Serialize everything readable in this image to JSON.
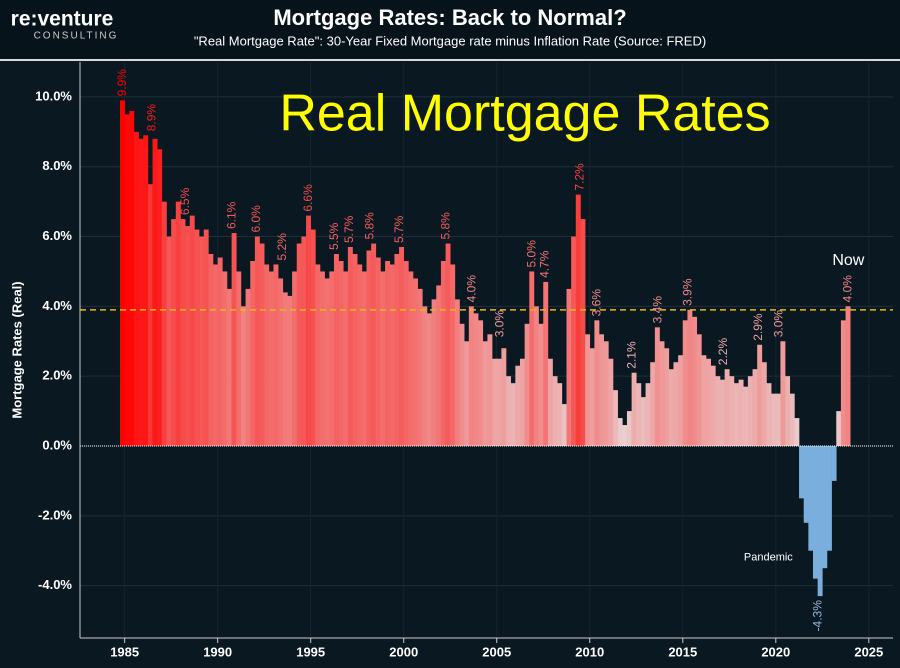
{
  "brand": {
    "name": "re:venture",
    "tagline": "CONSULTING"
  },
  "chart_data": {
    "type": "bar",
    "title": "Mortgage Rates: Back to Normal?",
    "subtitle": "\"Real Mortgage Rate\": 30-Year Fixed Mortgage rate minus Inflation Rate (Source: FRED)",
    "overlay_title": "Real Mortgage Rates",
    "y_label": "Mortgage Rates (Real)",
    "x": [
      1984.75,
      1985,
      1985.25,
      1985.5,
      1985.75,
      1986,
      1986.25,
      1986.5,
      1986.75,
      1987,
      1987.25,
      1987.5,
      1987.75,
      1988,
      1988.25,
      1988.5,
      1988.75,
      1989,
      1989.25,
      1989.5,
      1989.75,
      1990,
      1990.25,
      1990.5,
      1990.75,
      1991,
      1991.25,
      1991.5,
      1991.75,
      1992,
      1992.25,
      1992.5,
      1992.75,
      1993,
      1993.25,
      1993.5,
      1993.75,
      1994,
      1994.25,
      1994.5,
      1994.75,
      1995,
      1995.25,
      1995.5,
      1995.75,
      1996,
      1996.25,
      1996.5,
      1996.75,
      1997,
      1997.25,
      1997.5,
      1997.75,
      1998,
      1998.25,
      1998.5,
      1998.75,
      1999,
      1999.25,
      1999.5,
      1999.75,
      2000,
      2000.25,
      2000.5,
      2000.75,
      2001,
      2001.25,
      2001.5,
      2001.75,
      2002,
      2002.25,
      2002.5,
      2002.75,
      2003,
      2003.25,
      2003.5,
      2003.75,
      2004,
      2004.25,
      2004.5,
      2004.75,
      2005,
      2005.25,
      2005.5,
      2005.75,
      2006,
      2006.25,
      2006.5,
      2006.75,
      2007,
      2007.25,
      2007.5,
      2007.75,
      2008,
      2008.25,
      2008.5,
      2008.75,
      2009,
      2009.25,
      2009.5,
      2009.75,
      2010,
      2010.25,
      2010.5,
      2010.75,
      2011,
      2011.25,
      2011.5,
      2011.75,
      2012,
      2012.25,
      2012.5,
      2012.75,
      2013,
      2013.25,
      2013.5,
      2013.75,
      2014,
      2014.25,
      2014.5,
      2014.75,
      2015,
      2015.25,
      2015.5,
      2015.75,
      2016,
      2016.25,
      2016.5,
      2016.75,
      2017,
      2017.25,
      2017.5,
      2017.75,
      2018,
      2018.25,
      2018.5,
      2018.75,
      2019,
      2019.25,
      2019.5,
      2019.75,
      2020,
      2020.25,
      2020.5,
      2020.75,
      2021,
      2021.25,
      2021.5,
      2021.75,
      2022,
      2022.25,
      2022.5,
      2022.75,
      2023,
      2023.25,
      2023.5,
      2023.75
    ],
    "values": [
      9.9,
      9.5,
      9.6,
      9.0,
      8.8,
      8.9,
      7.5,
      8.8,
      8.5,
      7.0,
      6.0,
      6.5,
      7.0,
      6.5,
      6.3,
      6.6,
      6.2,
      6.0,
      6.2,
      5.5,
      5.2,
      5.4,
      5.0,
      4.5,
      6.1,
      5.0,
      4.0,
      4.5,
      5.3,
      6.0,
      5.8,
      5.2,
      5.0,
      5.2,
      4.8,
      4.4,
      4.3,
      5.0,
      5.8,
      6.0,
      6.6,
      6.2,
      5.2,
      5.0,
      4.8,
      5.0,
      5.5,
      5.3,
      5.0,
      5.7,
      5.5,
      5.2,
      5.0,
      5.6,
      5.8,
      5.4,
      5.0,
      5.3,
      5.2,
      5.5,
      5.7,
      5.3,
      5.0,
      4.8,
      4.5,
      4.0,
      3.8,
      4.2,
      4.6,
      5.3,
      5.8,
      5.2,
      4.2,
      3.5,
      3.0,
      4.0,
      3.8,
      3.6,
      3.0,
      3.2,
      2.5,
      2.5,
      2.8,
      2.0,
      1.8,
      2.3,
      2.5,
      3.5,
      5.0,
      4.0,
      3.5,
      4.7,
      2.5,
      2.0,
      1.8,
      1.2,
      4.5,
      6.0,
      7.2,
      6.5,
      3.2,
      2.8,
      3.6,
      3.2,
      3.0,
      2.5,
      1.6,
      0.8,
      0.6,
      1.0,
      2.1,
      1.8,
      1.4,
      1.8,
      2.4,
      3.4,
      3.0,
      2.8,
      2.2,
      2.4,
      2.6,
      3.6,
      3.9,
      3.7,
      3.2,
      2.6,
      2.5,
      2.3,
      2.0,
      1.9,
      2.2,
      2.0,
      1.8,
      1.9,
      1.7,
      2.0,
      2.2,
      2.9,
      2.4,
      1.8,
      1.5,
      1.5,
      3.0,
      2.0,
      1.5,
      0.8,
      -1.5,
      -2.2,
      -3.0,
      -3.8,
      -4.3,
      -3.5,
      -3.0,
      -1.0,
      1.0,
      3.6,
      4.0
    ],
    "colors": {
      "zero": "#e8dcdc",
      "max": "#ff0000",
      "negative": "#7aaedc",
      "reference": "#e8b80c",
      "overlay": "#ffff00"
    },
    "reference_line": 3.9,
    "xlim": [
      1982.6,
      2026.3
    ],
    "xticks": [
      1985,
      1990,
      1995,
      2000,
      2005,
      2010,
      2015,
      2020,
      2025
    ],
    "ylim": [
      -5.5,
      11
    ],
    "yticks": [
      {
        "value": -4,
        "label": "-4.0%"
      },
      {
        "value": -2,
        "label": "-2.0%"
      },
      {
        "value": 0,
        "label": "0.0%"
      },
      {
        "value": 2,
        "label": "2.0%"
      },
      {
        "value": 4,
        "label": "4.0%"
      },
      {
        "value": 6,
        "label": "6.0%"
      },
      {
        "value": 8,
        "label": "8.0%"
      },
      {
        "value": 10,
        "label": "10.0%"
      }
    ],
    "grid": true,
    "annotations": [
      {
        "x": 1984.9,
        "value": 9.9,
        "label": "9.9%"
      },
      {
        "x": 1986.5,
        "value": 8.9,
        "label": "8.9%"
      },
      {
        "x": 1988.3,
        "value": 6.5,
        "label": "6.5%"
      },
      {
        "x": 1990.8,
        "value": 6.1,
        "label": "6.1%"
      },
      {
        "x": 1992.1,
        "value": 6.0,
        "label": "6.0%"
      },
      {
        "x": 1993.5,
        "value": 5.2,
        "label": "5.2%"
      },
      {
        "x": 1994.9,
        "value": 6.6,
        "label": "6.6%"
      },
      {
        "x": 1996.3,
        "value": 5.5,
        "label": "5.5%"
      },
      {
        "x": 1997.1,
        "value": 5.7,
        "label": "5.7%"
      },
      {
        "x": 1998.2,
        "value": 5.8,
        "label": "5.8%"
      },
      {
        "x": 1999.8,
        "value": 5.7,
        "label": "5.7%"
      },
      {
        "x": 2002.3,
        "value": 5.8,
        "label": "5.8%"
      },
      {
        "x": 2003.7,
        "value": 4.0,
        "label": "4.0%"
      },
      {
        "x": 2005.2,
        "value": 3.0,
        "label": "3.0%"
      },
      {
        "x": 2006.9,
        "value": 5.0,
        "label": "5.0%"
      },
      {
        "x": 2007.6,
        "value": 4.7,
        "label": "4.7%"
      },
      {
        "x": 2009.5,
        "value": 7.2,
        "label": "7.2%"
      },
      {
        "x": 2010.4,
        "value": 3.6,
        "label": "3.6%"
      },
      {
        "x": 2012.3,
        "value": 2.1,
        "label": "2.1%"
      },
      {
        "x": 2013.7,
        "value": 3.4,
        "label": "3.4%"
      },
      {
        "x": 2015.3,
        "value": 3.9,
        "label": "3.9%"
      },
      {
        "x": 2017.2,
        "value": 2.2,
        "label": "2.2%"
      },
      {
        "x": 2019.1,
        "value": 2.9,
        "label": "2.9%"
      },
      {
        "x": 2020.2,
        "value": 3.0,
        "label": "3.0%"
      },
      {
        "x": 2022.3,
        "value": -4.3,
        "label": "-4.3%"
      },
      {
        "x": 2023.9,
        "value": 4.0,
        "label": "4.0%"
      }
    ],
    "notes": [
      {
        "x": 2023.9,
        "value": 5.3,
        "label": "Now"
      },
      {
        "x": 2019.6,
        "value": -3.2,
        "label": "Pandemic"
      }
    ]
  }
}
